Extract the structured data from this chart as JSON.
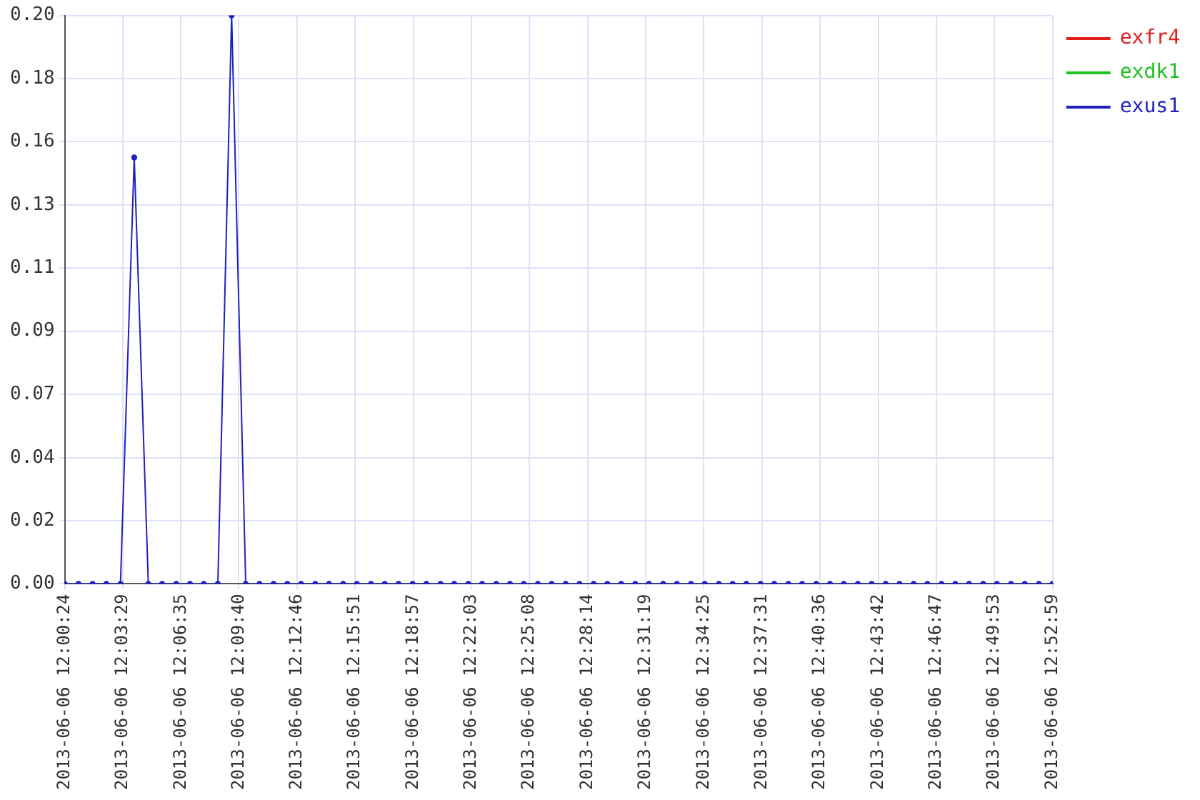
{
  "chart_data": {
    "type": "line",
    "marker": "circle",
    "line_style": "solid",
    "grid": true,
    "legend": "top right",
    "x": [
      "2013-06-06T12:00:24",
      "2013-06-06T12:01:08",
      "2013-06-06T12:01:53",
      "2013-06-06T12:02:37",
      "2013-06-06T12:03:22",
      "2013-06-06T12:04:06",
      "2013-06-06T12:04:51",
      "2013-06-06T12:05:35",
      "2013-06-06T12:06:20",
      "2013-06-06T12:07:04",
      "2013-06-06T12:07:48",
      "2013-06-06T12:08:33",
      "2013-06-06T12:09:17",
      "2013-06-06T12:10:02",
      "2013-06-06T12:10:46",
      "2013-06-06T12:11:31",
      "2013-06-06T12:12:15",
      "2013-06-06T12:12:59",
      "2013-06-06T12:13:44",
      "2013-06-06T12:14:28",
      "2013-06-06T12:15:13",
      "2013-06-06T12:15:57",
      "2013-06-06T12:16:42",
      "2013-06-06T12:17:26",
      "2013-06-06T12:18:10",
      "2013-06-06T12:18:55",
      "2013-06-06T12:19:39",
      "2013-06-06T12:20:24",
      "2013-06-06T12:21:08",
      "2013-06-06T12:21:53",
      "2013-06-06T12:22:37",
      "2013-06-06T12:23:22",
      "2013-06-06T12:24:06",
      "2013-06-06T12:24:50",
      "2013-06-06T12:25:35",
      "2013-06-06T12:26:19",
      "2013-06-06T12:27:04",
      "2013-06-06T12:27:48",
      "2013-06-06T12:28:33",
      "2013-06-06T12:29:17",
      "2013-06-06T12:30:01",
      "2013-06-06T12:30:46",
      "2013-06-06T12:31:30",
      "2013-06-06T12:32:15",
      "2013-06-06T12:32:59",
      "2013-06-06T12:33:44",
      "2013-06-06T12:34:28",
      "2013-06-06T12:35:13",
      "2013-06-06T12:35:57",
      "2013-06-06T12:36:41",
      "2013-06-06T12:37:26",
      "2013-06-06T12:38:10",
      "2013-06-06T12:38:55",
      "2013-06-06T12:39:39",
      "2013-06-06T12:40:24",
      "2013-06-06T12:41:08",
      "2013-06-06T12:41:52",
      "2013-06-06T12:42:37",
      "2013-06-06T12:43:21",
      "2013-06-06T12:44:06",
      "2013-06-06T12:44:50",
      "2013-06-06T12:45:35",
      "2013-06-06T12:46:19",
      "2013-06-06T12:47:04",
      "2013-06-06T12:47:48",
      "2013-06-06T12:48:32",
      "2013-06-06T12:49:17",
      "2013-06-06T12:50:01",
      "2013-06-06T12:50:46",
      "2013-06-06T12:51:30",
      "2013-06-06T12:52:15",
      "2013-06-06T12:52:59"
    ],
    "xlim": [
      "2013-06-06T12:00:24",
      "2013-06-06T12:52:59"
    ],
    "xticks": [
      {
        "value": "2013-06-06T12:00:24",
        "label": "2013-06-06 12:00:24"
      },
      {
        "value": "2013-06-06T12:03:29",
        "label": "2013-06-06 12:03:29"
      },
      {
        "value": "2013-06-06T12:06:35",
        "label": "2013-06-06 12:06:35"
      },
      {
        "value": "2013-06-06T12:09:40",
        "label": "2013-06-06 12:09:40"
      },
      {
        "value": "2013-06-06T12:12:46",
        "label": "2013-06-06 12:12:46"
      },
      {
        "value": "2013-06-06T12:15:51",
        "label": "2013-06-06 12:15:51"
      },
      {
        "value": "2013-06-06T12:18:57",
        "label": "2013-06-06 12:18:57"
      },
      {
        "value": "2013-06-06T12:22:03",
        "label": "2013-06-06 12:22:03"
      },
      {
        "value": "2013-06-06T12:25:08",
        "label": "2013-06-06 12:25:08"
      },
      {
        "value": "2013-06-06T12:28:14",
        "label": "2013-06-06 12:28:14"
      },
      {
        "value": "2013-06-06T12:31:19",
        "label": "2013-06-06 12:31:19"
      },
      {
        "value": "2013-06-06T12:34:25",
        "label": "2013-06-06 12:34:25"
      },
      {
        "value": "2013-06-06T12:37:31",
        "label": "2013-06-06 12:37:31"
      },
      {
        "value": "2013-06-06T12:40:36",
        "label": "2013-06-06 12:40:36"
      },
      {
        "value": "2013-06-06T12:43:42",
        "label": "2013-06-06 12:43:42"
      },
      {
        "value": "2013-06-06T12:46:47",
        "label": "2013-06-06 12:46:47"
      },
      {
        "value": "2013-06-06T12:49:53",
        "label": "2013-06-06 12:49:53"
      },
      {
        "value": "2013-06-06T12:52:59",
        "label": "2013-06-06 12:52:59"
      }
    ],
    "ylim": [
      0,
      0.2
    ],
    "yticks": [
      {
        "value": 0,
        "label": "0.00"
      },
      {
        "value": 0.0222,
        "label": "0.02"
      },
      {
        "value": 0.0444,
        "label": "0.04"
      },
      {
        "value": 0.0667,
        "label": "0.07"
      },
      {
        "value": 0.0889,
        "label": "0.09"
      },
      {
        "value": 0.1111,
        "label": "0.11"
      },
      {
        "value": 0.1333,
        "label": "0.13"
      },
      {
        "value": 0.1556,
        "label": "0.16"
      },
      {
        "value": 0.1778,
        "label": "0.18"
      },
      {
        "value": 0.2,
        "label": "0.20"
      }
    ],
    "series": [
      {
        "name": "exfr4",
        "color": "#e02020",
        "values": [
          null,
          null,
          null,
          null,
          null,
          null,
          null,
          null,
          null,
          null,
          null,
          null,
          null,
          null,
          null,
          null,
          null,
          null,
          null,
          null,
          null,
          null,
          null,
          null,
          null,
          null,
          null,
          null,
          null,
          null,
          null,
          null,
          null,
          null,
          null,
          null,
          null,
          null,
          null,
          null,
          null,
          null,
          null,
          null,
          null,
          null,
          null,
          null,
          null,
          null,
          null,
          null,
          null,
          null,
          null,
          null,
          null,
          null,
          null,
          null,
          null,
          null,
          null,
          null,
          null,
          null,
          null,
          null,
          null,
          null,
          null,
          null
        ]
      },
      {
        "name": "exdk1",
        "color": "#20c020",
        "values": [
          null,
          null,
          null,
          null,
          null,
          null,
          null,
          null,
          null,
          null,
          null,
          null,
          null,
          null,
          null,
          null,
          null,
          null,
          null,
          null,
          null,
          null,
          null,
          null,
          null,
          null,
          null,
          null,
          null,
          null,
          null,
          null,
          null,
          null,
          null,
          null,
          null,
          null,
          null,
          null,
          null,
          null,
          null,
          null,
          null,
          null,
          null,
          null,
          null,
          null,
          null,
          null,
          null,
          null,
          null,
          null,
          null,
          null,
          null,
          null,
          null,
          null,
          null,
          null,
          null,
          null,
          null,
          null,
          null,
          null,
          null,
          null
        ]
      },
      {
        "name": "exus1",
        "color": "#2020c0",
        "values": [
          0,
          0,
          0,
          0,
          0,
          0.15,
          0,
          0,
          0,
          0,
          0,
          0,
          0.2,
          0,
          0,
          0,
          0,
          0,
          0,
          0,
          0,
          0,
          0,
          0,
          0,
          0,
          0,
          0,
          0,
          0,
          0,
          0,
          0,
          0,
          0,
          0,
          0,
          0,
          0,
          0,
          0,
          0,
          0,
          0,
          0,
          0,
          0,
          0,
          0,
          0,
          0,
          0,
          0,
          0,
          0,
          0,
          0,
          0,
          0,
          0,
          0,
          0,
          0,
          0,
          0,
          0,
          0,
          0,
          0,
          0,
          0,
          0
        ]
      }
    ]
  }
}
